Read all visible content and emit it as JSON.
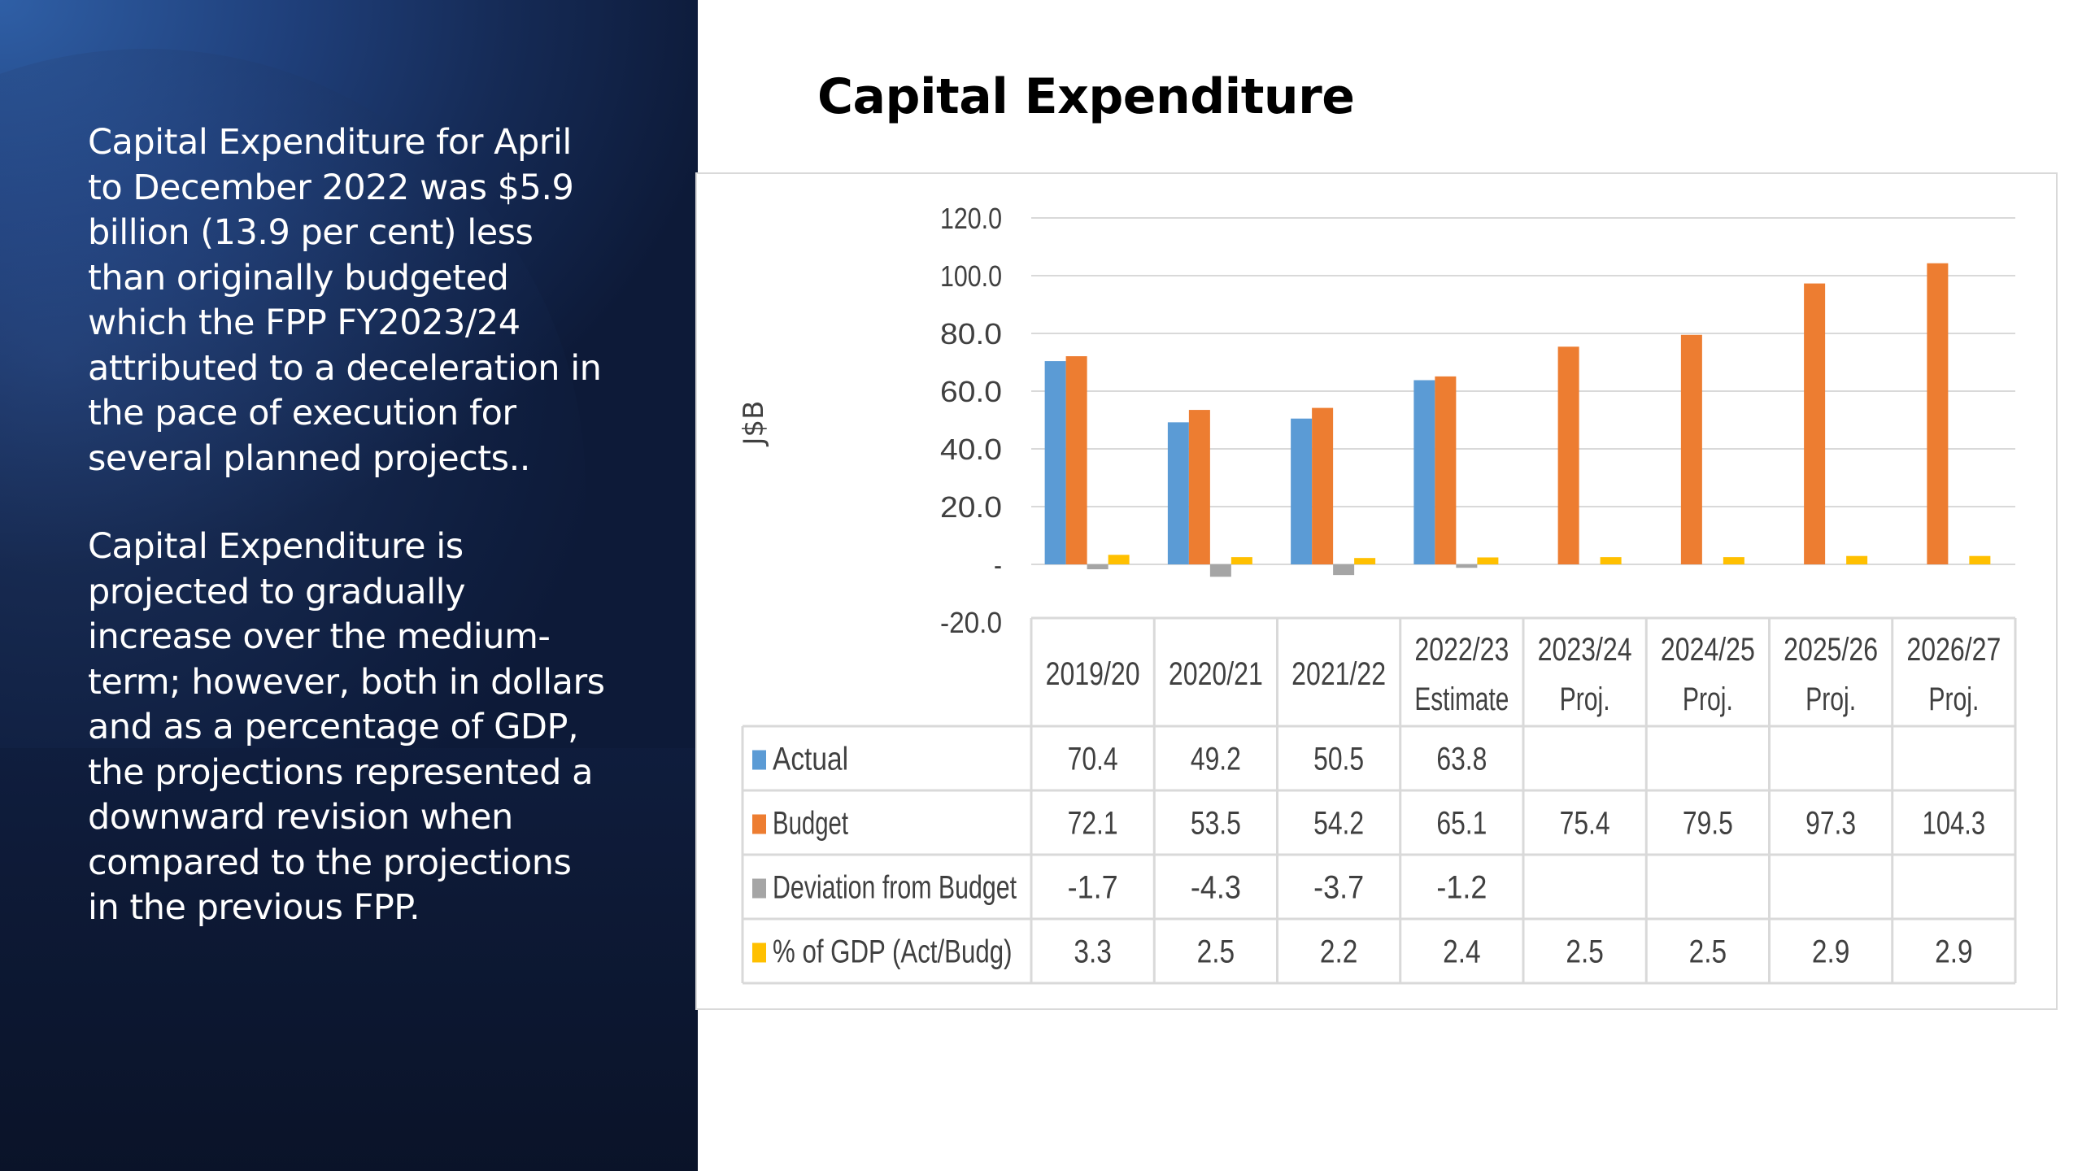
{
  "slide": {
    "title": "Capital Expenditure",
    "paragraph1": "Capital Expenditure for April\nto December 2022 was $5.9\nbillion (13.9 per cent) less\nthan originally budgeted\nwhich the FPP FY2023/24\nattributed to a deceleration in\nthe pace of execution for\nseveral planned projects..",
    "paragraph2": "Capital Expenditure is\nprojected to gradually\nincrease over the medium-\nterm;  however, both in dollars\nand as a percentage of GDP,\nthe projections represented a\ndownward revision when\ncompared to the projections\nin the previous FPP."
  },
  "chart_data": {
    "type": "bar",
    "title": "",
    "ylabel": "J$B",
    "ylim": [
      -20,
      120
    ],
    "yticks": [
      "120.0",
      "100.0",
      "80.0",
      "60.0",
      "40.0",
      "20.0",
      "-",
      "-20.0"
    ],
    "grid": true,
    "categories": [
      [
        "2019/20"
      ],
      [
        "2020/21"
      ],
      [
        "2021/22"
      ],
      [
        "2022/23",
        "Estimate"
      ],
      [
        "2023/24",
        "Proj."
      ],
      [
        "2024/25",
        "Proj."
      ],
      [
        "2025/26",
        "Proj."
      ],
      [
        "2026/27",
        "Proj."
      ]
    ],
    "series": [
      {
        "name": "Actual",
        "color": "#5b9bd5",
        "values": [
          70.4,
          49.2,
          50.5,
          63.8,
          null,
          null,
          null,
          null
        ],
        "labels": [
          "70.4",
          "49.2",
          "50.5",
          "63.8",
          "",
          "",
          "",
          ""
        ]
      },
      {
        "name": "Budget",
        "color": "#ed7d31",
        "values": [
          72.1,
          53.5,
          54.2,
          65.1,
          75.4,
          79.5,
          97.3,
          104.3
        ],
        "labels": [
          "72.1",
          "53.5",
          "54.2",
          "65.1",
          "75.4",
          "79.5",
          "97.3",
          "104.3"
        ]
      },
      {
        "name": "Deviation from Budget",
        "color": "#a5a5a5",
        "values": [
          -1.7,
          -4.3,
          -3.7,
          -1.2,
          null,
          null,
          null,
          null
        ],
        "labels": [
          "-1.7",
          "-4.3",
          "-3.7",
          "-1.2",
          "",
          "",
          "",
          ""
        ]
      },
      {
        "name": "% of GDP (Act/Budg)",
        "color": "#ffc000",
        "values": [
          3.3,
          2.5,
          2.2,
          2.4,
          2.5,
          2.5,
          2.9,
          2.9
        ],
        "labels": [
          "3.3",
          "2.5",
          "2.2",
          "2.4",
          "2.5",
          "2.5",
          "2.9",
          "2.9"
        ]
      }
    ],
    "data_table": true
  }
}
